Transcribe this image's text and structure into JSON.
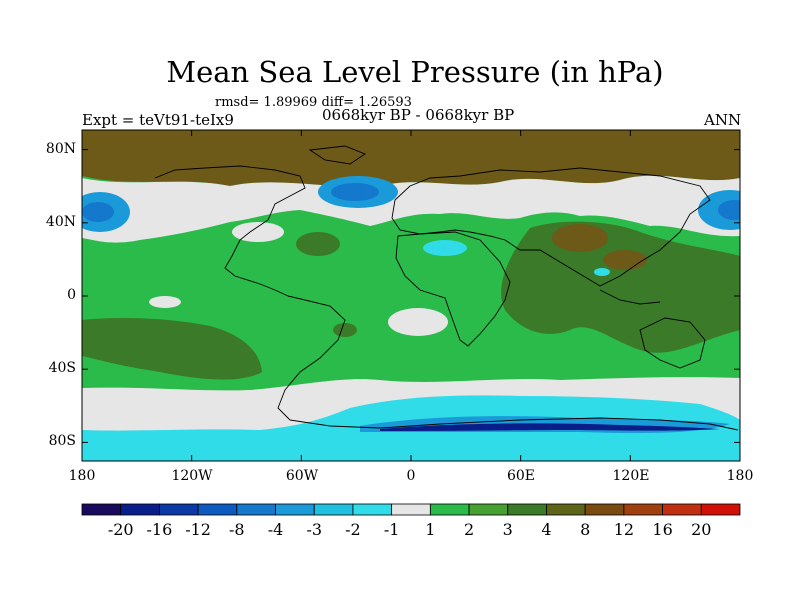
{
  "title": "Mean Sea Level Pressure (in hPa)",
  "stats": "rmsd= 1.89969 diff= 1.26593",
  "period": "0668kyr BP - 0668kyr BP",
  "expt": "Expt = teVt91-teIx9",
  "season": "ANN",
  "lat_labels": [
    "80N",
    "40N",
    "0",
    "40S",
    "80S"
  ],
  "lon_labels": [
    "180",
    "120W",
    "60W",
    "0",
    "60E",
    "120E",
    "180"
  ],
  "colorbar": {
    "labels": [
      "-20",
      "-16",
      "-12",
      "-8",
      "-4",
      "-3",
      "-2",
      "-1",
      "1",
      "2",
      "3",
      "4",
      "8",
      "12",
      "16",
      "20"
    ],
    "colors": [
      "#1a0a5e",
      "#0a1e8a",
      "#0b3aa8",
      "#0d5ac0",
      "#1478cc",
      "#1a9ad8",
      "#20c0e0",
      "#30dce8",
      "#e6e6e6",
      "#2abb4a",
      "#48a032",
      "#3a7a28",
      "#5e6418",
      "#7a4a10",
      "#a0400e",
      "#c03010",
      "#d01008"
    ]
  },
  "colors": {
    "gray": "#e6e6e6",
    "green": "#2abb4a",
    "olive": "#3a7a28",
    "brown": "#6e5a18",
    "cyan": "#30dce8",
    "lightblue": "#1a9ad8",
    "blue": "#1478cc",
    "darkblue": "#0a1e8a"
  }
}
